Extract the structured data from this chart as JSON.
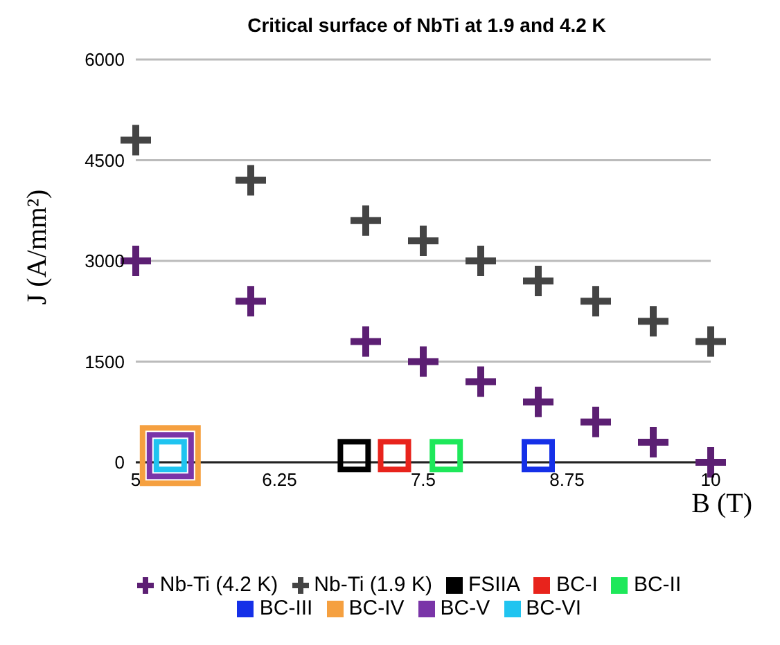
{
  "chart_data": {
    "type": "scatter",
    "title": "Critical surface of NbTi at 1.9 and 4.2 K",
    "xlabel": "B (T)",
    "ylabel": "J (A/mm²)",
    "xlim": [
      5,
      10
    ],
    "xticks": [
      5,
      6.25,
      7.5,
      8.75,
      10
    ],
    "ylim": [
      0,
      6000
    ],
    "yticks": [
      0,
      1500,
      3000,
      4500,
      6000
    ],
    "grid": "y",
    "legend": "bottom",
    "series": [
      {
        "name": "Nb-Ti (4.2 K)",
        "color": "#5c1f73",
        "marker": "cross",
        "x": [
          5,
          6,
          7,
          7.5,
          8,
          8.5,
          9,
          9.5,
          10
        ],
        "values": [
          3000,
          2400,
          1800,
          1500,
          1200,
          900,
          600,
          300,
          0
        ]
      },
      {
        "name": "Nb-Ti (1.9 K)",
        "color": "#444444",
        "marker": "cross",
        "x": [
          5,
          6,
          7,
          7.5,
          8,
          8.5,
          9,
          9.5,
          10
        ],
        "values": [
          4800,
          4200,
          3600,
          3300,
          3000,
          2700,
          2400,
          2100,
          1800
        ]
      },
      {
        "name": "FSIIA",
        "color": "#000000",
        "marker": "square",
        "x": [
          6.9
        ],
        "values": [
          100
        ]
      },
      {
        "name": "BC-I",
        "color": "#e8231c",
        "marker": "square",
        "x": [
          7.25
        ],
        "values": [
          100
        ]
      },
      {
        "name": "BC-II",
        "color": "#1ee85a",
        "marker": "square",
        "x": [
          7.7
        ],
        "values": [
          100
        ]
      },
      {
        "name": "BC-III",
        "color": "#1530e8",
        "marker": "square",
        "x": [
          8.5
        ],
        "values": [
          100
        ]
      },
      {
        "name": "BC-IV",
        "color": "#f5a040",
        "marker": "square",
        "x": [
          5.3
        ],
        "values": [
          100
        ]
      },
      {
        "name": "BC-V",
        "color": "#7a35a8",
        "marker": "square",
        "x": [
          5.3
        ],
        "values": [
          100
        ]
      },
      {
        "name": "BC-VI",
        "color": "#20c4f0",
        "marker": "square",
        "x": [
          5.3
        ],
        "values": [
          100
        ]
      }
    ]
  }
}
